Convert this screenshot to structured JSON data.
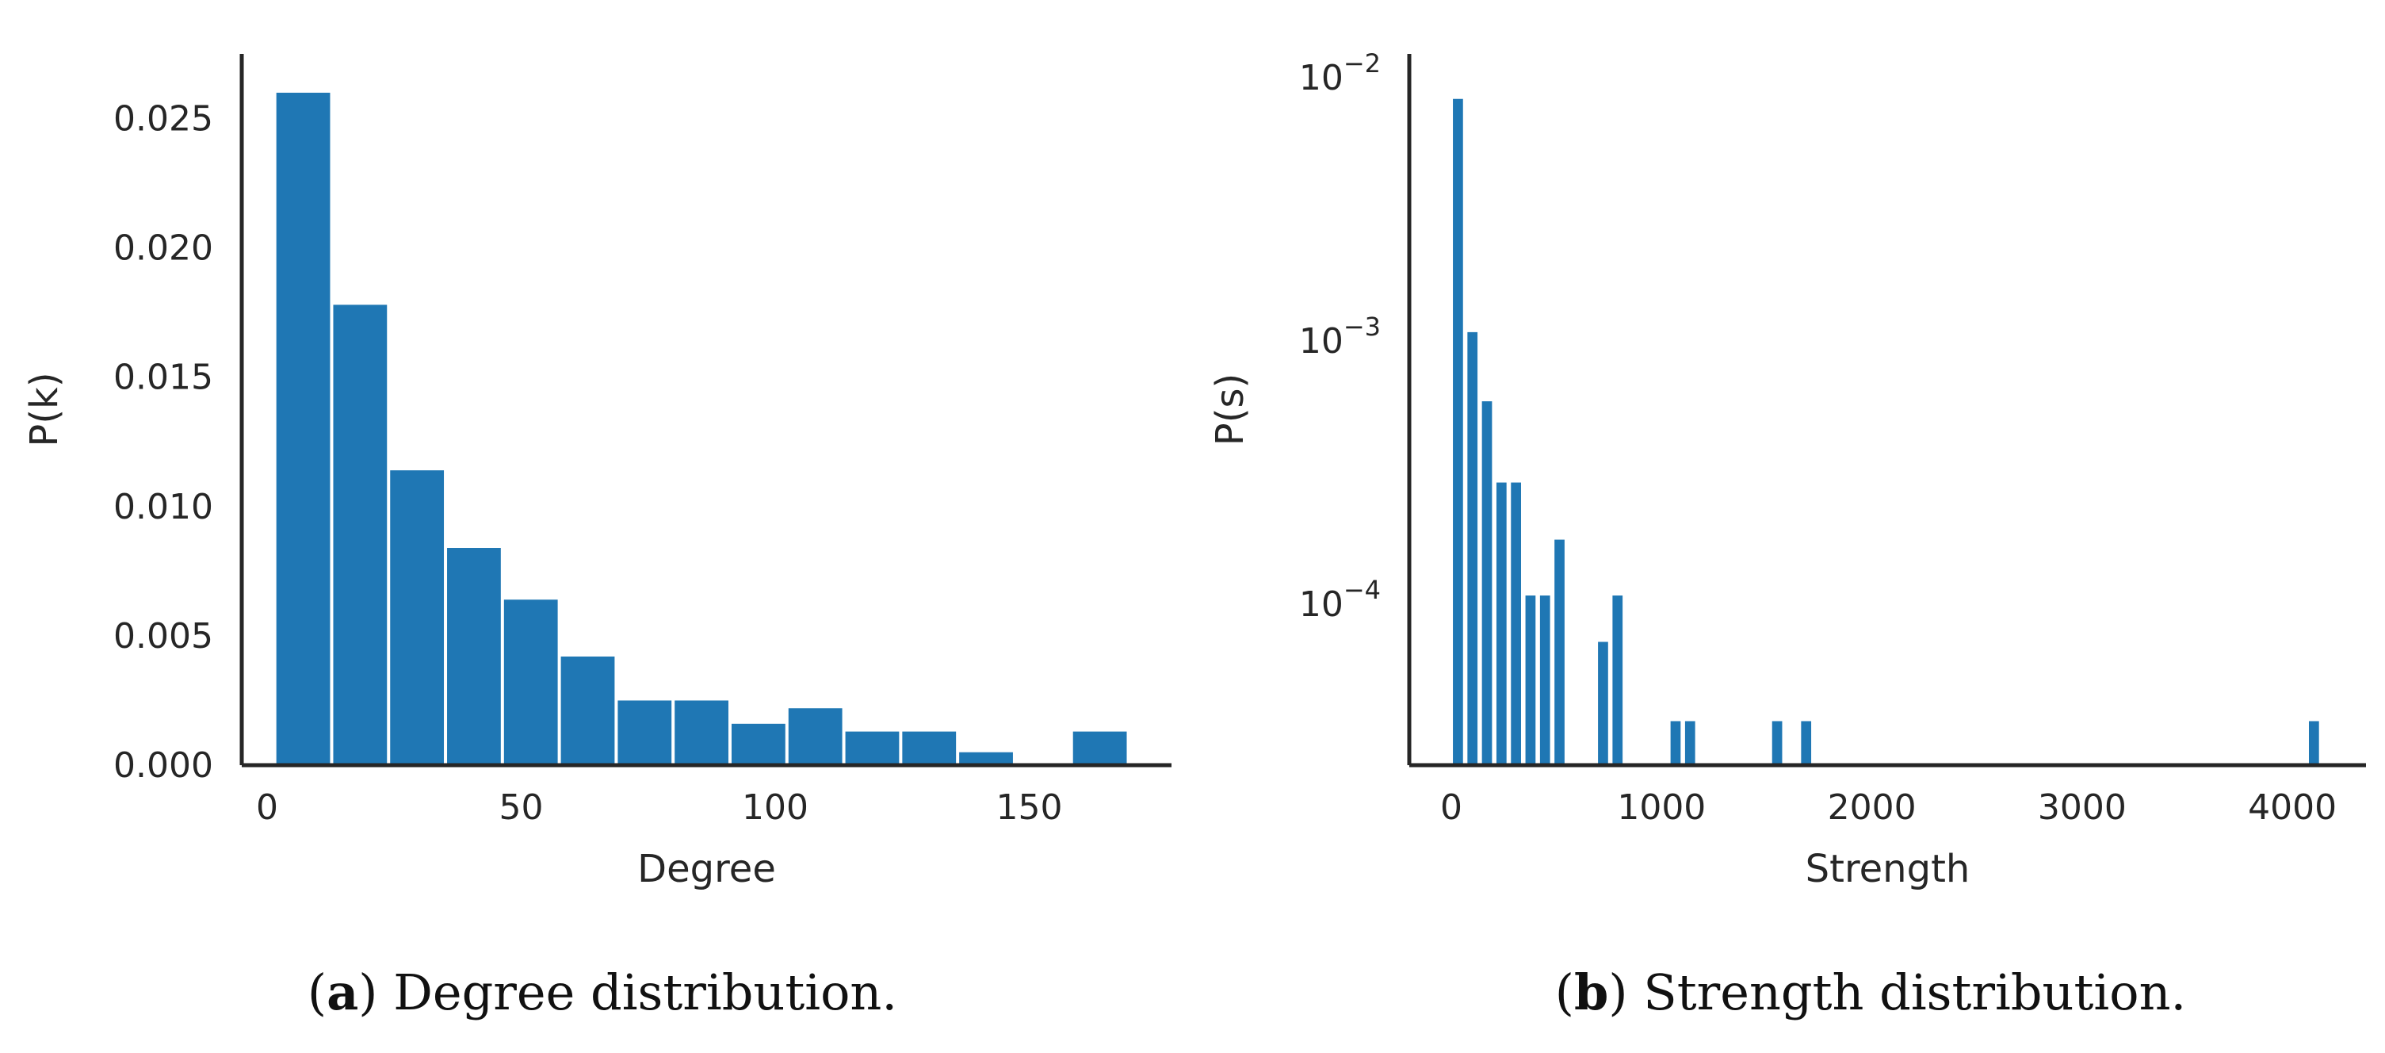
{
  "colors": {
    "bar": "#1f77b4",
    "axis": "#262626",
    "text": "#262626"
  },
  "chart_data": [
    {
      "type": "bar",
      "panel": "a",
      "caption": {
        "letter": "a",
        "text": "Degree distribution."
      },
      "xlabel": "Degree",
      "ylabel": "P(k)",
      "xscale": "linear",
      "yscale": "linear",
      "xlim": [
        -5,
        178
      ],
      "ylim": [
        0,
        0.0275
      ],
      "xticks": [
        0,
        50,
        100,
        150
      ],
      "xtick_labels": [
        "0",
        "50",
        "100",
        "150"
      ],
      "yticks": [
        0,
        0.005,
        0.01,
        0.015,
        0.02,
        0.025
      ],
      "ytick_labels": [
        "0.000",
        "0.005",
        "0.010",
        "0.015",
        "0.020",
        "0.025"
      ],
      "bin_width": 11.2,
      "bins": [
        {
          "x0": 1.5,
          "value": 0.026
        },
        {
          "x0": 12.7,
          "value": 0.0178
        },
        {
          "x0": 23.9,
          "value": 0.0114
        },
        {
          "x0": 35.1,
          "value": 0.0084
        },
        {
          "x0": 46.3,
          "value": 0.0064
        },
        {
          "x0": 57.5,
          "value": 0.0042
        },
        {
          "x0": 68.7,
          "value": 0.0025
        },
        {
          "x0": 79.9,
          "value": 0.0025
        },
        {
          "x0": 91.1,
          "value": 0.0016
        },
        {
          "x0": 102.3,
          "value": 0.0022
        },
        {
          "x0": 113.5,
          "value": 0.0013
        },
        {
          "x0": 124.7,
          "value": 0.0013
        },
        {
          "x0": 135.9,
          "value": 0.0005
        },
        {
          "x0": 158.3,
          "value": 0.0013
        }
      ]
    },
    {
      "type": "bar",
      "panel": "b",
      "caption": {
        "letter": "b",
        "text": "Strength distribution."
      },
      "xlabel": "Strength",
      "ylabel": "P(s)",
      "xscale": "linear",
      "yscale": "log",
      "xlim": [
        -200,
        4350
      ],
      "ylim": [
        2.45e-05,
        0.0123
      ],
      "xticks": [
        0,
        1000,
        2000,
        3000,
        4000
      ],
      "xtick_labels": [
        "0",
        "1000",
        "2000",
        "3000",
        "4000"
      ],
      "yticks": [
        0.0001,
        0.001,
        0.01
      ],
      "ytick_labels": [
        {
          "base": "10",
          "exp": "−4"
        },
        {
          "base": "10",
          "exp": "−3"
        },
        {
          "base": "10",
          "exp": "−2"
        }
      ],
      "bin_width": 63,
      "bins": [
        {
          "x0": 0,
          "value": 0.0083
        },
        {
          "x0": 69,
          "value": 0.00108
        },
        {
          "x0": 138,
          "value": 0.00059
        },
        {
          "x0": 207,
          "value": 0.00029
        },
        {
          "x0": 276,
          "value": 0.00029
        },
        {
          "x0": 345,
          "value": 0.000108
        },
        {
          "x0": 414,
          "value": 0.000108
        },
        {
          "x0": 483,
          "value": 0.000176
        },
        {
          "x0": 690,
          "value": 7.2e-05
        },
        {
          "x0": 759,
          "value": 0.000108
        },
        {
          "x0": 1035,
          "value": 3.6e-05
        },
        {
          "x0": 1104,
          "value": 3.6e-05
        },
        {
          "x0": 1518,
          "value": 3.6e-05
        },
        {
          "x0": 1656,
          "value": 3.6e-05
        },
        {
          "x0": 4071,
          "value": 3.6e-05
        }
      ]
    }
  ]
}
